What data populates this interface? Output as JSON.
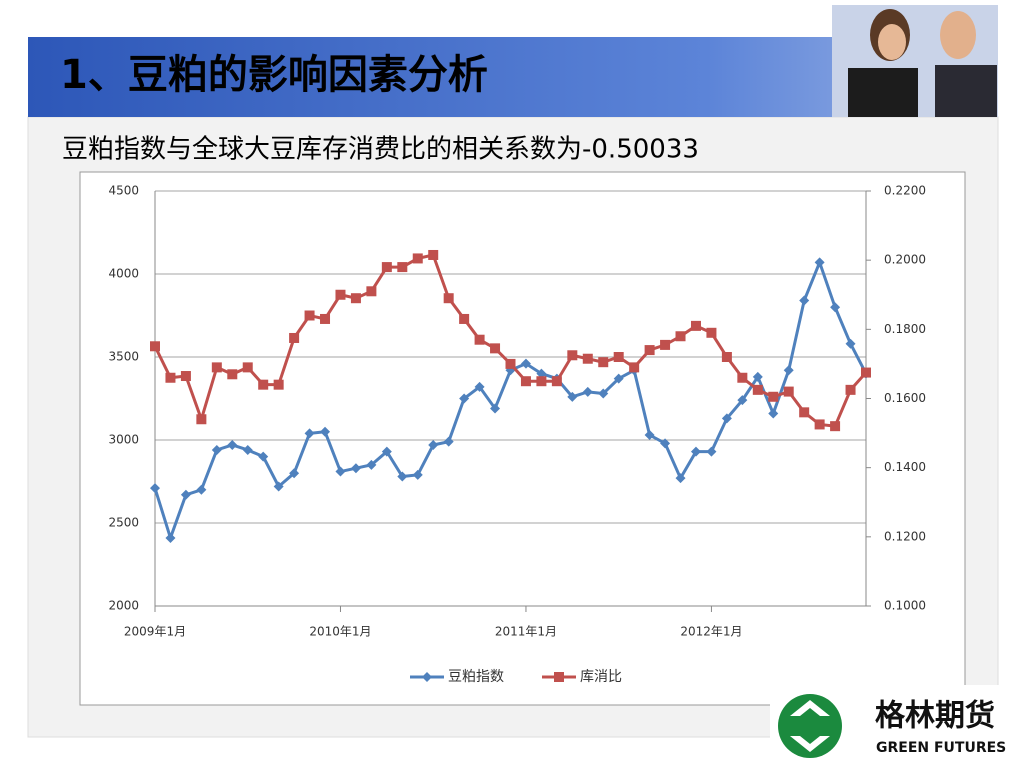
{
  "header": {
    "title": "1、豆粕的影响因素分析"
  },
  "subtitle": "豆粕指数与全球大豆库存消费比的相关系数为-0.50033",
  "logo": {
    "name": "格林期货",
    "name_en": "GREEN FUTURES"
  },
  "chart_data": {
    "type": "line",
    "categories": [
      "2009年1月",
      null,
      null,
      null,
      null,
      null,
      null,
      null,
      null,
      null,
      null,
      null,
      "2010年1月",
      null,
      null,
      null,
      null,
      null,
      null,
      null,
      null,
      null,
      null,
      null,
      "2011年1月",
      null,
      null,
      null,
      null,
      null,
      null,
      null,
      null,
      null,
      null,
      null,
      "2012年1月",
      null,
      null,
      null,
      null,
      null,
      null,
      null,
      null,
      null,
      null
    ],
    "series": [
      {
        "name": "豆粕指数",
        "color": "#4f81bd",
        "marker": "diamond",
        "values": [
          2710,
          2410,
          2670,
          2700,
          2940,
          2970,
          2940,
          2900,
          2720,
          2800,
          3040,
          3050,
          2810,
          2830,
          2850,
          2930,
          2780,
          2790,
          2970,
          2990,
          3250,
          3320,
          3190,
          3420,
          3460,
          3400,
          3370,
          3260,
          3290,
          3280,
          3370,
          3420,
          3030,
          2980,
          2770,
          2930,
          2930,
          3130,
          3240,
          3380,
          3160,
          3420,
          3840,
          4070,
          3800,
          3580,
          3400
        ]
      },
      {
        "name": "库消比",
        "color": "#c0504d",
        "marker": "square",
        "axis": "y2",
        "values": [
          0.1751,
          0.166,
          0.1665,
          0.154,
          0.169,
          0.167,
          0.169,
          0.164,
          0.164,
          0.1775,
          0.184,
          0.183,
          0.19,
          0.189,
          0.191,
          0.198,
          0.198,
          0.2005,
          0.2015,
          0.189,
          0.183,
          0.177,
          0.1745,
          0.17,
          0.165,
          0.165,
          0.165,
          0.1725,
          0.1715,
          0.1705,
          0.172,
          0.169,
          0.174,
          0.1755,
          0.178,
          0.181,
          0.179,
          0.172,
          0.166,
          0.1625,
          0.1605,
          0.162,
          0.156,
          0.1525,
          0.152,
          0.1625,
          0.1675
        ]
      }
    ],
    "ylim": [
      2000,
      4500
    ],
    "yticks": [
      2000,
      2500,
      3000,
      3500,
      4000,
      4500
    ],
    "y2lim": [
      0.1,
      0.22
    ],
    "y2ticks": [
      {
        "value": 0.1,
        "label": "0.1000"
      },
      {
        "value": 0.12,
        "label": "0.1200"
      },
      {
        "value": 0.14,
        "label": "0.1400"
      },
      {
        "value": 0.16,
        "label": "0.1600"
      },
      {
        "value": 0.18,
        "label": "0.1800"
      },
      {
        "value": 0.2,
        "label": "0.2000"
      },
      {
        "value": 0.22,
        "label": "0.2200"
      }
    ],
    "grid": true,
    "legend": "bottom"
  }
}
